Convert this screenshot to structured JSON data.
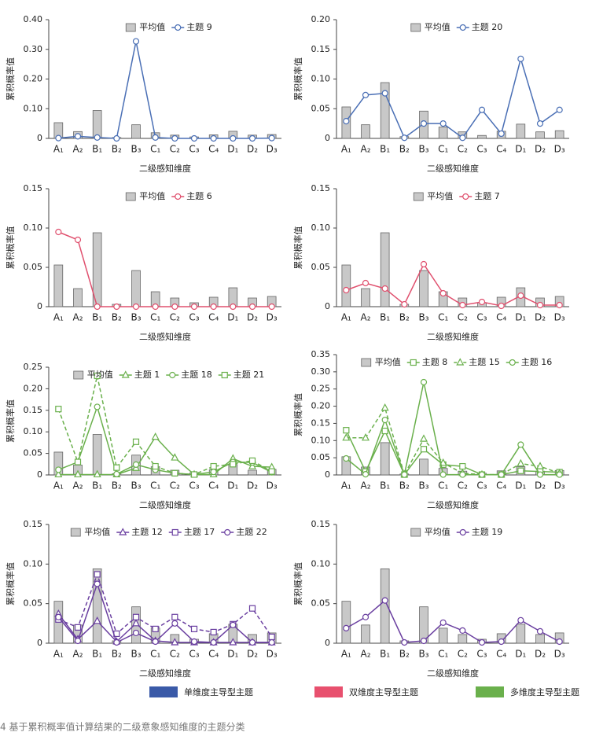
{
  "chart_data": [
    {
      "type": "combo",
      "ylabel": "累积概率值",
      "xlabel": "二级感知维度",
      "categories": [
        "A₁",
        "A₂",
        "B₁",
        "B₂",
        "B₃",
        "C₁",
        "C₂",
        "C₃",
        "C₄",
        "D₁",
        "D₂",
        "D₃"
      ],
      "ylim": [
        0,
        0.4
      ],
      "yticks": [
        0,
        {
          "value": 0.1,
          "label": "0.10"
        },
        {
          "value": 0.2,
          "label": "0.20"
        },
        {
          "value": 0.3,
          "label": "0.30"
        },
        {
          "value": 0.4,
          "label": "0.40"
        }
      ],
      "series": [
        {
          "name": "平均值",
          "kind": "bar",
          "color": "#c8c8c8",
          "values": [
            0.053,
            0.023,
            0.094,
            0.003,
            0.046,
            0.019,
            0.011,
            0.005,
            0.012,
            0.024,
            0.011,
            0.013
          ]
        },
        {
          "name": "主题 9",
          "kind": "line",
          "marker": "circle",
          "dashed": false,
          "color": "#4a6fb5",
          "values": [
            0.001,
            0.007,
            0.003,
            0,
            0.327,
            0.003,
            0,
            0,
            0,
            0,
            0,
            0.001
          ]
        }
      ]
    },
    {
      "type": "combo",
      "ylabel": "累积概率值",
      "xlabel": "二级感知维度",
      "categories": [
        "A₁",
        "A₂",
        "B₁",
        "B₂",
        "B₃",
        "C₁",
        "C₂",
        "C₃",
        "C₄",
        "D₁",
        "D₂",
        "D₃"
      ],
      "ylim": [
        0,
        0.2
      ],
      "yticks": [
        0,
        0.05,
        {
          "value": 0.1,
          "label": "0.10"
        },
        0.15,
        {
          "value": 0.2,
          "label": "0.20"
        }
      ],
      "series": [
        {
          "name": "平均值",
          "kind": "bar",
          "color": "#c8c8c8",
          "values": [
            0.053,
            0.023,
            0.094,
            0.003,
            0.046,
            0.019,
            0.011,
            0.005,
            0.012,
            0.024,
            0.011,
            0.013
          ]
        },
        {
          "name": "主题 20",
          "kind": "line",
          "marker": "circle",
          "dashed": false,
          "color": "#4a6fb5",
          "values": [
            0.029,
            0.073,
            0.076,
            0.001,
            0.025,
            0.025,
            0.001,
            0.048,
            0.008,
            0.134,
            0.025,
            0.048
          ]
        }
      ]
    },
    {
      "type": "combo",
      "ylabel": "累积概率值",
      "xlabel": "二级感知维度",
      "categories": [
        "A₁",
        "A₂",
        "B₁",
        "B₂",
        "B₃",
        "C₁",
        "C₂",
        "C₃",
        "C₄",
        "D₁",
        "D₂",
        "D₃"
      ],
      "ylim": [
        0,
        0.15
      ],
      "yticks": [
        0,
        0.05,
        {
          "value": 0.1,
          "label": "0.10"
        },
        0.15
      ],
      "series": [
        {
          "name": "平均值",
          "kind": "bar",
          "color": "#c8c8c8",
          "values": [
            0.053,
            0.023,
            0.094,
            0.003,
            0.046,
            0.019,
            0.011,
            0.005,
            0.012,
            0.024,
            0.011,
            0.013
          ]
        },
        {
          "name": "主题 6",
          "kind": "line",
          "marker": "circle",
          "dashed": false,
          "color": "#e0506e",
          "values": [
            0.095,
            0.085,
            0,
            0,
            0,
            0,
            0,
            0,
            0,
            0,
            0,
            0
          ]
        }
      ]
    },
    {
      "type": "combo",
      "ylabel": "累积概率值",
      "xlabel": "二级感知维度",
      "categories": [
        "A₁",
        "A₂",
        "B₁",
        "B₂",
        "B₃",
        "C₁",
        "C₂",
        "C₃",
        "C₄",
        "D₁",
        "D₂",
        "D₃"
      ],
      "ylim": [
        0,
        0.15
      ],
      "yticks": [
        0,
        0.05,
        {
          "value": 0.1,
          "label": "0.10"
        },
        0.15
      ],
      "series": [
        {
          "name": "平均值",
          "kind": "bar",
          "color": "#c8c8c8",
          "values": [
            0.053,
            0.023,
            0.094,
            0.003,
            0.046,
            0.019,
            0.011,
            0.005,
            0.012,
            0.024,
            0.011,
            0.013
          ]
        },
        {
          "name": "主题 7",
          "kind": "line",
          "marker": "circle",
          "dashed": false,
          "color": "#e0506e",
          "values": [
            0.021,
            0.03,
            0.023,
            0.003,
            0.054,
            0.017,
            0.002,
            0.006,
            0.001,
            0.014,
            0.002,
            0.002
          ]
        }
      ]
    },
    {
      "type": "combo",
      "ylabel": "累积概率值",
      "xlabel": "二级感知维度",
      "categories": [
        "A₁",
        "A₂",
        "B₁",
        "B₂",
        "B₃",
        "C₁",
        "C₂",
        "C₃",
        "C₄",
        "D₁",
        "D₂",
        "D₃"
      ],
      "ylim": [
        0,
        0.25
      ],
      "yticks": [
        0,
        0.05,
        {
          "value": 0.1,
          "label": "0.10"
        },
        0.15,
        {
          "value": 0.2,
          "label": "0.20"
        },
        0.25
      ],
      "series": [
        {
          "name": "平均值",
          "kind": "bar",
          "color": "#c8c8c8",
          "values": [
            0.053,
            0.023,
            0.094,
            0.003,
            0.046,
            0.019,
            0.011,
            0.005,
            0.012,
            0.024,
            0.011,
            0.013
          ]
        },
        {
          "name": "主题 1",
          "kind": "line",
          "marker": "triangle",
          "dashed": false,
          "color": "#6ab04c",
          "values": [
            0.001,
            0.001,
            0.001,
            0.001,
            0.016,
            0.088,
            0.04,
            0.001,
            0.001,
            0.038,
            0.02,
            0.018
          ]
        },
        {
          "name": "主题 18",
          "kind": "line",
          "marker": "circle",
          "dashed": false,
          "color": "#6ab04c",
          "values": [
            0.012,
            0.03,
            0.158,
            0.002,
            0.024,
            0.012,
            0.004,
            0.001,
            0.007,
            0.03,
            0.029,
            0.006
          ]
        },
        {
          "name": "主题 21",
          "kind": "line",
          "marker": "square",
          "dashed": true,
          "color": "#6ab04c",
          "values": [
            0.153,
            0.03,
            0.23,
            0.017,
            0.077,
            0.02,
            0.004,
            0.001,
            0.02,
            0.025,
            0.033,
            0.008
          ]
        }
      ]
    },
    {
      "type": "combo",
      "ylabel": "累积概率值",
      "xlabel": "二级感知维度",
      "categories": [
        "A₁",
        "A₂",
        "B₁",
        "B₂",
        "B₃",
        "C₁",
        "C₂",
        "C₃",
        "C₄",
        "D₁",
        "D₂",
        "D₃"
      ],
      "ylim": [
        0,
        0.35
      ],
      "yticks": [
        0,
        0.05,
        {
          "value": 0.1,
          "label": "0.10"
        },
        0.15,
        {
          "value": 0.2,
          "label": "0.20"
        },
        0.25,
        {
          "value": 0.3,
          "label": "0.30"
        },
        0.35
      ],
      "series": [
        {
          "name": "平均值",
          "kind": "bar",
          "color": "#c8c8c8",
          "values": [
            0.053,
            0.023,
            0.094,
            0.003,
            0.046,
            0.019,
            0.011,
            0.005,
            0.012,
            0.024,
            0.011,
            0.013
          ]
        },
        {
          "name": "主题 8",
          "kind": "line",
          "marker": "square",
          "dashed": false,
          "color": "#6ab04c",
          "values": [
            0.13,
            0.01,
            0.128,
            0.001,
            0.075,
            0.03,
            0.025,
            0.001,
            0.001,
            0.012,
            0.01,
            0.008
          ]
        },
        {
          "name": "主题 15",
          "kind": "line",
          "marker": "triangle",
          "dashed": true,
          "color": "#6ab04c",
          "values": [
            0.108,
            0.108,
            0.195,
            0.001,
            0.105,
            0.035,
            0.005,
            0.001,
            0.001,
            0.033,
            0.025,
            0.005
          ]
        },
        {
          "name": "主题 16",
          "kind": "line",
          "marker": "circle",
          "dashed": false,
          "color": "#6ab04c",
          "values": [
            0.048,
            0.002,
            0.16,
            0.001,
            0.27,
            0.001,
            0.001,
            0.001,
            0.001,
            0.088,
            0.001,
            0.001
          ]
        }
      ]
    },
    {
      "type": "combo",
      "ylabel": "累积概率值",
      "xlabel": "二级感知维度",
      "categories": [
        "A₁",
        "A₂",
        "B₁",
        "B₂",
        "B₃",
        "C₁",
        "C₂",
        "C₃",
        "C₄",
        "D₁",
        "D₂",
        "D₃"
      ],
      "ylim": [
        0,
        0.15
      ],
      "yticks": [
        0,
        0.05,
        {
          "value": 0.1,
          "label": "0.10"
        },
        0.15
      ],
      "series": [
        {
          "name": "平均值",
          "kind": "bar",
          "color": "#c8c8c8",
          "values": [
            0.053,
            0.023,
            0.094,
            0.003,
            0.046,
            0.019,
            0.011,
            0.005,
            0.012,
            0.024,
            0.011,
            0.013
          ]
        },
        {
          "name": "主题 12",
          "kind": "line",
          "marker": "triangle",
          "dashed": false,
          "color": "#6a3fa0",
          "values": [
            0.037,
            0.005,
            0.028,
            0.002,
            0.025,
            0.003,
            0.001,
            0.001,
            0.001,
            0.001,
            0.001,
            0.001
          ]
        },
        {
          "name": "主题 17",
          "kind": "line",
          "marker": "square",
          "dashed": true,
          "color": "#6a3fa0",
          "values": [
            0.03,
            0.02,
            0.087,
            0.012,
            0.033,
            0.018,
            0.033,
            0.018,
            0.014,
            0.024,
            0.044,
            0.008
          ]
        },
        {
          "name": "主题 22",
          "kind": "line",
          "marker": "circle",
          "dashed": false,
          "color": "#6a3fa0",
          "values": [
            0.033,
            0.003,
            0.075,
            0.001,
            0.013,
            0.002,
            0.025,
            0.002,
            0.001,
            0.023,
            0.001,
            0.001
          ]
        }
      ]
    },
    {
      "type": "combo",
      "ylabel": "累积概率值",
      "xlabel": "二级感知维度",
      "categories": [
        "A₁",
        "A₂",
        "B₁",
        "B₂",
        "B₃",
        "C₁",
        "C₂",
        "C₃",
        "C₄",
        "D₁",
        "D₂",
        "D₃"
      ],
      "ylim": [
        0,
        0.15
      ],
      "yticks": [
        0,
        0.05,
        {
          "value": 0.1,
          "label": "0.10"
        },
        0.15
      ],
      "series": [
        {
          "name": "平均值",
          "kind": "bar",
          "color": "#c8c8c8",
          "values": [
            0.053,
            0.023,
            0.094,
            0.003,
            0.046,
            0.019,
            0.011,
            0.005,
            0.012,
            0.024,
            0.011,
            0.013
          ]
        },
        {
          "name": "主题 19",
          "kind": "line",
          "marker": "circle",
          "dashed": false,
          "color": "#6a3fa0",
          "values": [
            0.019,
            0.033,
            0.054,
            0.001,
            0.003,
            0.026,
            0.016,
            0.001,
            0.002,
            0.029,
            0.015,
            0.002
          ]
        }
      ]
    }
  ],
  "legend": [
    {
      "label": "单维度主导型主题",
      "color": "#3a5aa8"
    },
    {
      "label": "双维度主导型主题",
      "color": "#e8506e"
    },
    {
      "label": "多维度主导型主题",
      "color": "#6ab04c"
    }
  ],
  "caption": "4 基于累积概率值计算结果的二级意象感知维度的主题分类"
}
